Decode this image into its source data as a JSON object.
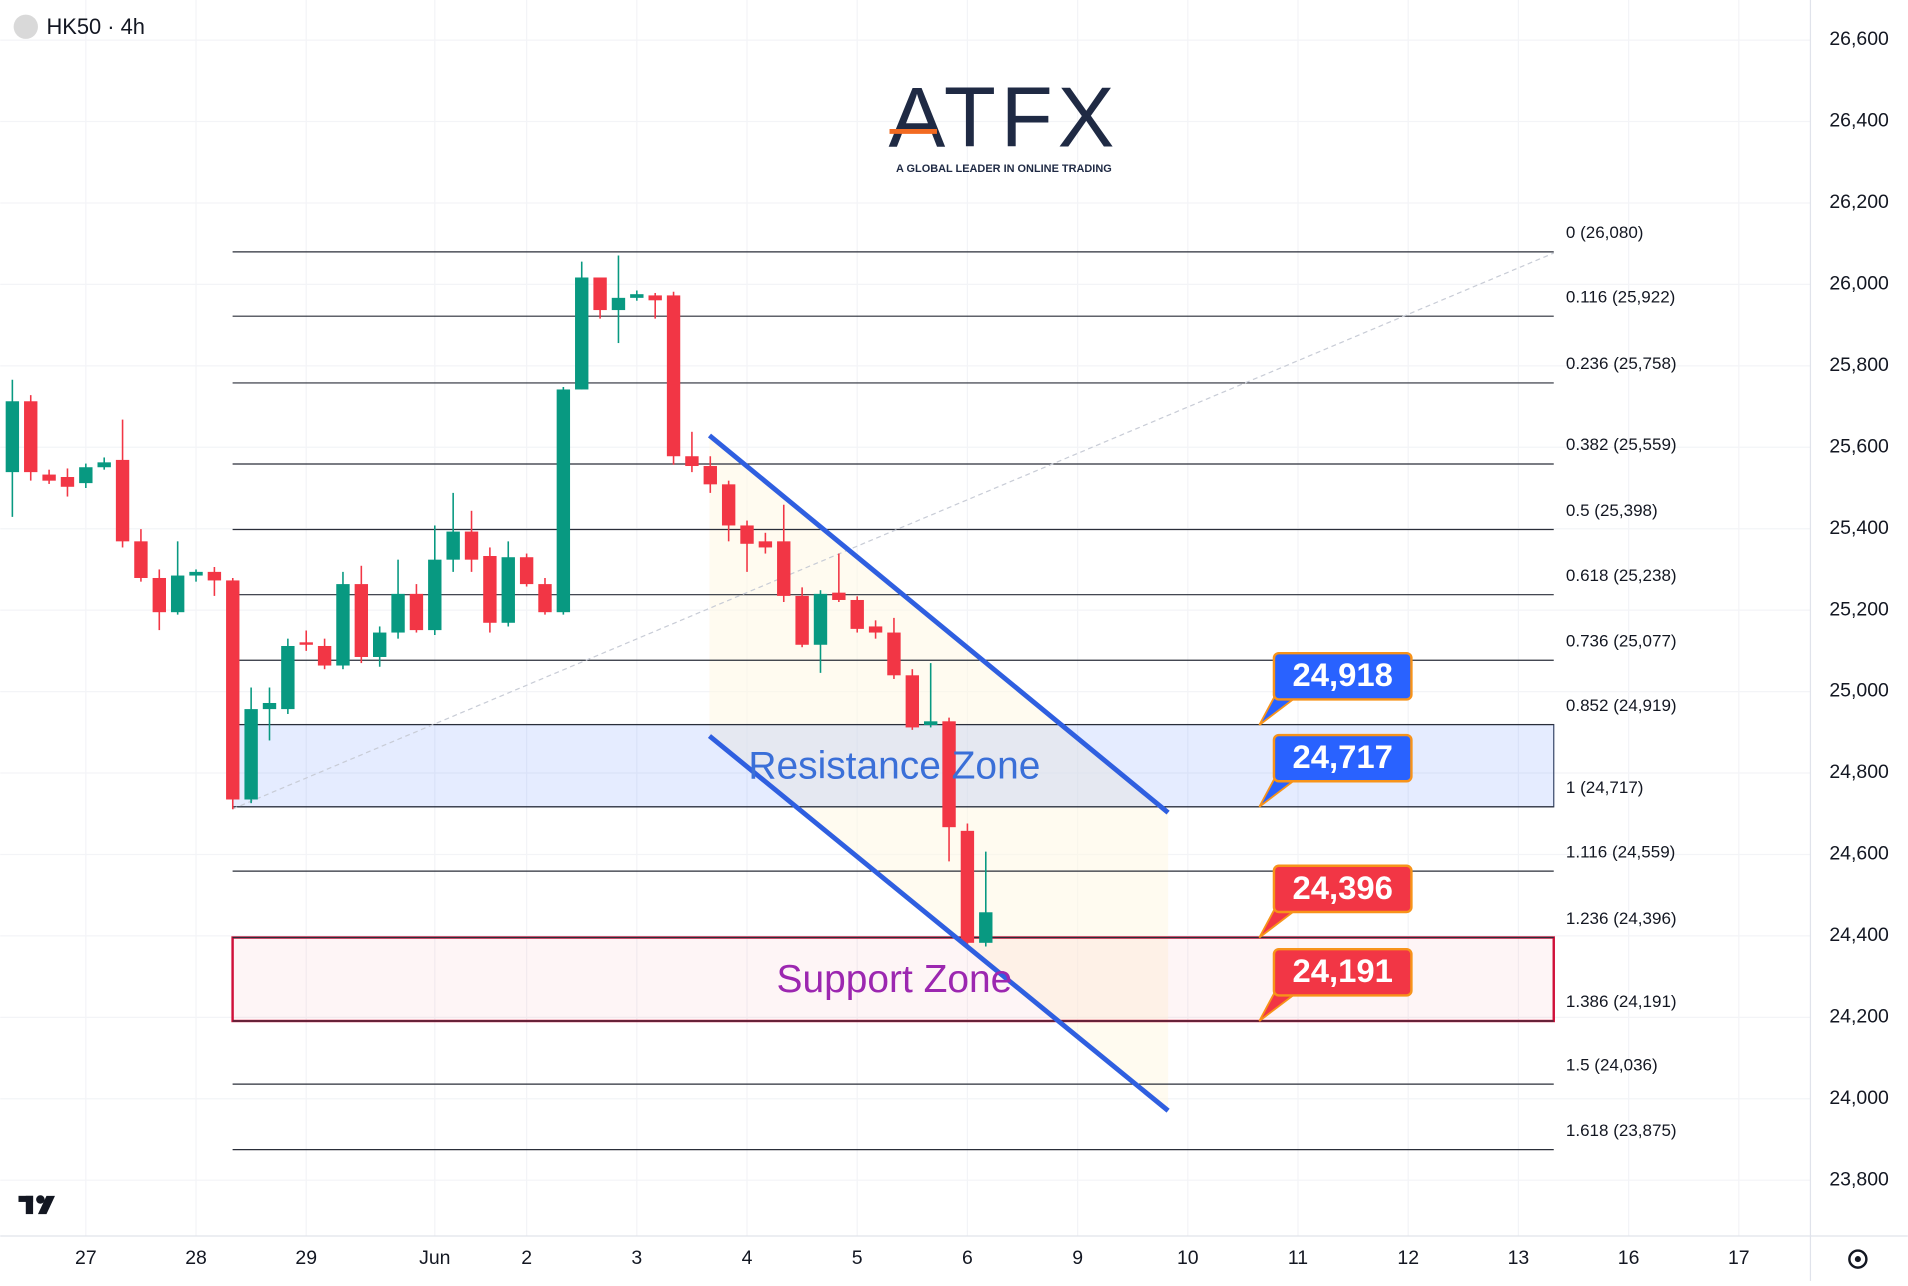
{
  "chart_data": {
    "type": "candlestick",
    "title": "HK50 · 4h",
    "logo": "ATFX",
    "logo_tagline": "A GLOBAL LEADER IN ONLINE TRADING",
    "up_color": "#089981",
    "down_color": "#f23645",
    "grid": true,
    "open": [
      25539,
      25713,
      25533,
      25527,
      25512,
      25551,
      25569,
      25369,
      25279,
      25195,
      25285,
      25294,
      25273,
      24735,
      24957,
      24957,
      25121,
      25112,
      25064,
      25264,
      25085,
      25145,
      25240,
      25151,
      25324,
      25393,
      25333,
      25169,
      25330,
      25264,
      25195,
      25742,
      26017,
      25937,
      25967,
      25973,
      25973,
      25578,
      25554,
      25509,
      25408,
      25369,
      25369,
      25235,
      25115,
      25243,
      25225,
      25160,
      25145,
      25040,
      24918,
      24927,
      24658,
      24383
    ],
    "high": [
      25766,
      25728,
      25545,
      25548,
      25560,
      25575,
      25668,
      25399,
      25300,
      25369,
      25300,
      25306,
      25279,
      25010,
      25010,
      25130,
      25150,
      25130,
      25294,
      25309,
      25160,
      25324,
      25264,
      25408,
      25488,
      25444,
      25354,
      25369,
      25339,
      25279,
      25748,
      26056,
      26017,
      26071,
      25985,
      25979,
      25982,
      25638,
      25578,
      25518,
      25420,
      25390,
      25459,
      25256,
      25249,
      25339,
      25234,
      25175,
      25181,
      25055,
      25070,
      24936,
      24676,
      24607
    ],
    "low": [
      25429,
      25518,
      25510,
      25479,
      25500,
      25545,
      25354,
      25270,
      25151,
      25189,
      25270,
      25235,
      24711,
      24726,
      24880,
      24945,
      25100,
      25055,
      25055,
      25070,
      25061,
      25130,
      25145,
      25139,
      25294,
      25294,
      25145,
      25160,
      25258,
      25189,
      25189,
      25742,
      25916,
      25856,
      25960,
      25916,
      25557,
      25539,
      25488,
      25369,
      25294,
      25339,
      25220,
      25109,
      25046,
      25220,
      25145,
      25130,
      25031,
      24906,
      24912,
      24583,
      24374,
      24374
    ],
    "close": [
      25713,
      25539,
      25518,
      25503,
      25551,
      25563,
      25369,
      25279,
      25195,
      25285,
      25294,
      25273,
      24735,
      24957,
      24972,
      25112,
      25115,
      25064,
      25264,
      25085,
      25145,
      25240,
      25151,
      25324,
      25393,
      25324,
      25169,
      25330,
      25264,
      25195,
      25742,
      26017,
      25937,
      25967,
      25976,
      25961,
      25578,
      25554,
      25509,
      25408,
      25363,
      25354,
      25235,
      25115,
      25240,
      25225,
      25154,
      25145,
      25040,
      24912,
      24927,
      24667,
      24383,
      24458
    ],
    "ylim": [
      23660,
      26700
    ],
    "yticks": [
      {
        "value": 26600,
        "label": "26,600"
      },
      {
        "value": 26400,
        "label": "26,400"
      },
      {
        "value": 26200,
        "label": "26,200"
      },
      {
        "value": 26000,
        "label": "26,000"
      },
      {
        "value": 25800,
        "label": "25,800"
      },
      {
        "value": 25600,
        "label": "25,600"
      },
      {
        "value": 25400,
        "label": "25,400"
      },
      {
        "value": 25200,
        "label": "25,200"
      },
      {
        "value": 25000,
        "label": "25,000"
      },
      {
        "value": 24800,
        "label": "24,800"
      },
      {
        "value": 24600,
        "label": "24,600"
      },
      {
        "value": 24400,
        "label": "24,400"
      },
      {
        "value": 24200,
        "label": "24,200"
      },
      {
        "value": 24000,
        "label": "24,000"
      },
      {
        "value": 23800,
        "label": "23,800"
      }
    ],
    "xlim": [
      -0.66,
      97.9
    ],
    "xticks": [
      {
        "value": 4,
        "label": "27"
      },
      {
        "value": 10,
        "label": "28"
      },
      {
        "value": 16,
        "label": "29"
      },
      {
        "value": 23,
        "label": "Jun"
      },
      {
        "value": 28,
        "label": "2"
      },
      {
        "value": 34,
        "label": "3"
      },
      {
        "value": 40,
        "label": "4"
      },
      {
        "value": 46,
        "label": "5"
      },
      {
        "value": 52,
        "label": "6"
      },
      {
        "value": 58,
        "label": "9"
      },
      {
        "value": 64,
        "label": "10"
      },
      {
        "value": 70,
        "label": "11"
      },
      {
        "value": 76,
        "label": "12"
      },
      {
        "value": 82,
        "label": "13"
      },
      {
        "value": 88,
        "label": "16"
      },
      {
        "value": 94,
        "label": "17"
      }
    ],
    "fib_levels": [
      {
        "value": 26080,
        "label": "0 (26,080)"
      },
      {
        "value": 25922,
        "label": "0.116 (25,922)"
      },
      {
        "value": 25758,
        "label": "0.236 (25,758)"
      },
      {
        "value": 25559,
        "label": "0.382 (25,559)"
      },
      {
        "value": 25398,
        "label": "0.5 (25,398)"
      },
      {
        "value": 25238,
        "label": "0.618 (25,238)"
      },
      {
        "value": 25077,
        "label": "0.736 (25,077)"
      },
      {
        "value": 24919,
        "label": "0.852 (24,919)"
      },
      {
        "value": 24717,
        "label": "1 (24,717)"
      },
      {
        "value": 24559,
        "label": "1.116 (24,559)"
      },
      {
        "value": 24396,
        "label": "1.236 (24,396)"
      },
      {
        "value": 24191,
        "label": "1.386 (24,191)"
      },
      {
        "value": 24036,
        "label": "1.5 (24,036)"
      },
      {
        "value": 23875,
        "label": "1.618 (23,875)"
      }
    ],
    "zones": [
      {
        "name": "Resistance Zone",
        "low": 24717,
        "high": 24919,
        "color": "#3a6fd8"
      },
      {
        "name": "Support Zone",
        "low": 24191,
        "high": 24396,
        "color": "#9c27b0"
      }
    ],
    "price_tags": {
      "values": [
        24918,
        24717,
        24396,
        24191
      ],
      "value_labels": [
        "24,918",
        "24,717",
        "24,396",
        "24,191"
      ],
      "colors": [
        "#2962ff",
        "#2962ff",
        "#f23645",
        "#f23645"
      ]
    }
  }
}
